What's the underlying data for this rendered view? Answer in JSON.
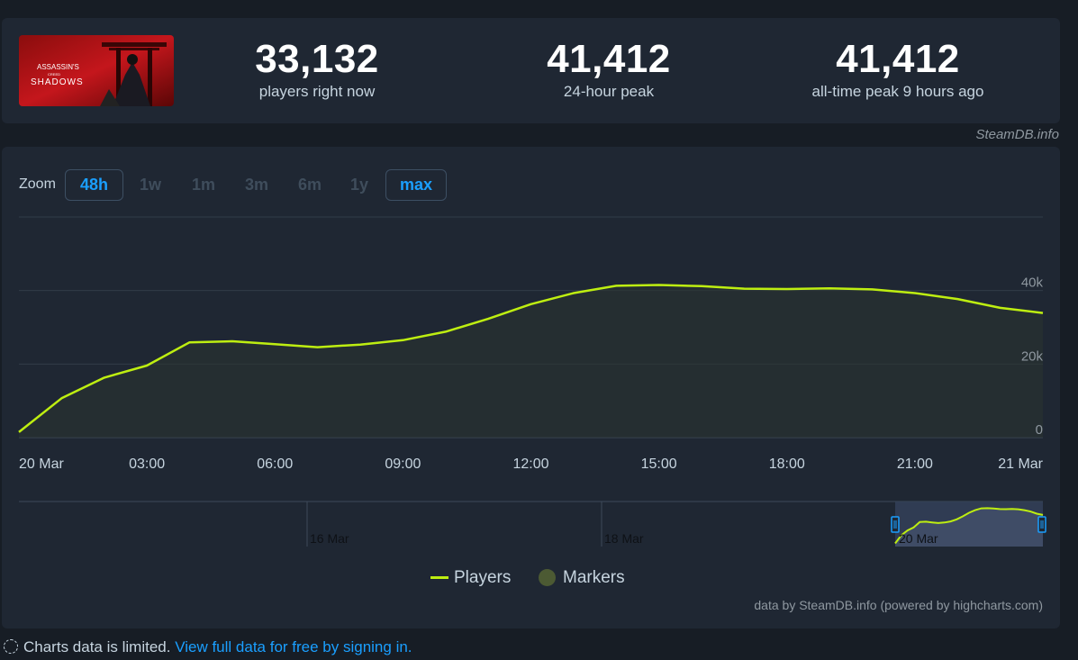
{
  "game": {
    "logo_text_line1": "ASSASSIN'S",
    "logo_text_line2": "CREED",
    "logo_text_line3": "SHADOWS"
  },
  "stats": [
    {
      "value": "33,132",
      "label": "players right now"
    },
    {
      "value": "41,412",
      "label": "24-hour peak"
    },
    {
      "value": "41,412",
      "label": "all-time peak 9 hours ago"
    }
  ],
  "credit_top": "SteamDB.info",
  "zoom": {
    "label": "Zoom",
    "options": [
      "48h",
      "1w",
      "1m",
      "3m",
      "6m",
      "1y",
      "max"
    ],
    "active": [
      "48h",
      "max"
    ]
  },
  "chart_data": {
    "type": "area",
    "x_tick_labels": [
      "20 Mar",
      "03:00",
      "06:00",
      "09:00",
      "12:00",
      "15:00",
      "18:00",
      "21:00",
      "21 Mar"
    ],
    "y_tick_labels": [
      "0",
      "20k",
      "40k"
    ],
    "ylim": [
      0,
      60000
    ],
    "x_hours": [
      0,
      1,
      2,
      3,
      4,
      5,
      6,
      7,
      8,
      9,
      10,
      11,
      12,
      13,
      14,
      15,
      16,
      17,
      18,
      19,
      20,
      21,
      22,
      23,
      24
    ],
    "series": [
      {
        "name": "Players",
        "color": "#beee11",
        "values": [
          1500,
          10700,
          16300,
          19600,
          25900,
          26200,
          25400,
          24600,
          25300,
          26500,
          28800,
          32300,
          36300,
          39300,
          41300,
          41500,
          41200,
          40500,
          40400,
          40600,
          40300,
          39300,
          37700,
          35300,
          33900
        ]
      }
    ],
    "navigator": {
      "labels": [
        "16 Mar",
        "18 Mar",
        "20 Mar"
      ],
      "selection_values": [
        1500,
        10700,
        16300,
        19600,
        25900,
        26200,
        25400,
        24600,
        25300,
        26500,
        28800,
        32300,
        36300,
        39300,
        41300,
        41500,
        41200,
        40500,
        40400,
        40600,
        40300,
        39300,
        37700,
        35300,
        33900
      ]
    }
  },
  "legend": {
    "players": "Players",
    "markers": "Markers",
    "players_color": "#beee11",
    "markers_color": "#4c5a33"
  },
  "credit_bottom": "data by SteamDB.info (powered by highcharts.com)",
  "footer": {
    "text": "Charts data is limited.",
    "link": "View full data for free by signing in."
  }
}
